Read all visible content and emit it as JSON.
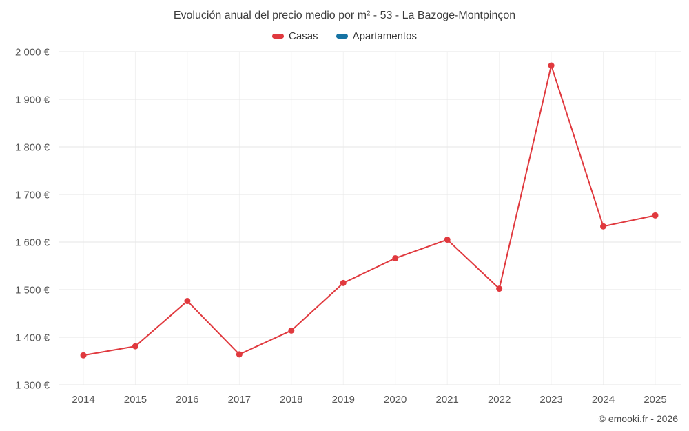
{
  "chart_data": {
    "type": "line",
    "title": "Evolución anual del precio medio por m² - 53 - La Bazoge-Montpinçon",
    "categories": [
      "2014",
      "2015",
      "2016",
      "2017",
      "2018",
      "2019",
      "2020",
      "2021",
      "2022",
      "2023",
      "2024",
      "2025"
    ],
    "series": [
      {
        "name": "Casas",
        "color": "#e0393e",
        "values": [
          1362,
          1381,
          1476,
          1364,
          1414,
          1514,
          1566,
          1605,
          1502,
          1971,
          1633,
          1656
        ]
      },
      {
        "name": "Apartamentos",
        "color": "#1673a3",
        "values": []
      }
    ],
    "ylim": [
      1300,
      2000
    ],
    "ytick_values": [
      1300,
      1400,
      1500,
      1600,
      1700,
      1800,
      1900,
      2000
    ],
    "ytick_labels": [
      "1 300 €",
      "1 400 €",
      "1 500 €",
      "1 600 €",
      "1 700 €",
      "1 800 €",
      "1 900 €",
      "2 000 €"
    ],
    "grid": true,
    "legend_position": "top",
    "colors": {
      "grid_line": "#e6e6e6",
      "vertical_grid_line": "#f2f2f2",
      "tick_text": "#555555",
      "title_text": "#3c3c3c"
    }
  },
  "footer": {
    "credit": "© emooki.fr - 2026"
  }
}
